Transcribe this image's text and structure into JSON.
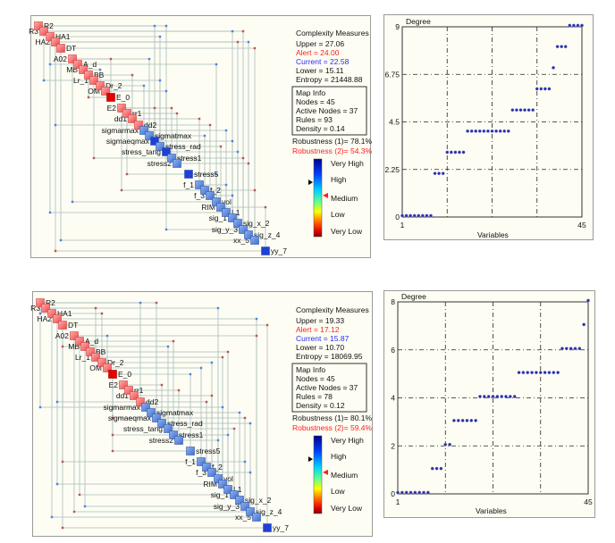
{
  "nodes": [
    {
      "label": "R2",
      "type": "red"
    },
    {
      "label": "R3",
      "type": "red"
    },
    {
      "label": "HA1",
      "type": "red"
    },
    {
      "label": "HA2",
      "type": "red"
    },
    {
      "label": "DT",
      "type": "red"
    },
    {
      "label": "A02",
      "type": "red"
    },
    {
      "label": "A_d",
      "type": "red"
    },
    {
      "label": "MB",
      "type": "red"
    },
    {
      "label": "BB",
      "type": "red"
    },
    {
      "label": "Lr_1",
      "type": "red"
    },
    {
      "label": "Dr_2",
      "type": "red"
    },
    {
      "label": "OM",
      "type": "red"
    },
    {
      "label": "E_0",
      "type": "bright-red"
    },
    {
      "label": "E2",
      "type": "red"
    },
    {
      "label": "rr1",
      "type": "red"
    },
    {
      "label": "dd1",
      "type": "red"
    },
    {
      "label": "dd2",
      "type": "red"
    },
    {
      "label": "sigmarmax",
      "type": "blue"
    },
    {
      "label": "sigmatmax",
      "type": "blue"
    },
    {
      "label": "sigmaeqmax",
      "type": "blue"
    },
    {
      "label": "stress_rad",
      "type": "blue"
    },
    {
      "label": "stress_tang",
      "type": "blue"
    },
    {
      "label": "stress1",
      "type": "blue"
    },
    {
      "label": "stress2",
      "type": "blue"
    },
    {
      "label": "stress5",
      "type": "blue"
    },
    {
      "label": "f_1",
      "type": "blue"
    },
    {
      "label": "f_2",
      "type": "blue"
    },
    {
      "label": "f_3",
      "type": "blue"
    },
    {
      "label": "vol",
      "type": "blue"
    },
    {
      "label": "RIM",
      "type": "blue"
    },
    {
      "label": "L1",
      "type": "blue"
    },
    {
      "label": "sig_1",
      "type": "blue"
    },
    {
      "label": "sig_x_2",
      "type": "blue"
    },
    {
      "label": "sig_y_3",
      "type": "blue"
    },
    {
      "label": "sig_z_4",
      "type": "blue"
    },
    {
      "label": "xx_5",
      "type": "blue"
    },
    {
      "label": "yy_7",
      "type": "blue"
    }
  ],
  "colors": {
    "red": "#f46a6a",
    "bright-red": "#e60000",
    "blue": "#5a88dc",
    "dark-blue": "#1f3fd6",
    "alert": "#ff2020",
    "current": "#2a2aff",
    "point": "#2b2b9a"
  },
  "legend": {
    "very_high": "Very High",
    "high": "High",
    "medium": "Medium",
    "low": "Low",
    "very_low": "Very Low"
  },
  "panels": [
    {
      "highlight_nodes": [
        19,
        21,
        24,
        36
      ],
      "connections": [
        [
          0,
          19,
          "b"
        ],
        [
          0,
          21,
          "b"
        ],
        [
          1,
          31,
          "b"
        ],
        [
          1,
          33,
          "r"
        ],
        [
          2,
          20,
          "b"
        ],
        [
          3,
          32,
          "r"
        ],
        [
          3,
          34,
          "b"
        ],
        [
          4,
          35,
          "r"
        ],
        [
          5,
          12,
          "r"
        ],
        [
          5,
          18,
          "b"
        ],
        [
          6,
          28,
          "b"
        ],
        [
          7,
          10,
          "b"
        ],
        [
          8,
          15,
          "r"
        ],
        [
          9,
          20,
          "b"
        ],
        [
          10,
          17,
          "b"
        ],
        [
          11,
          21,
          "b"
        ],
        [
          13,
          22,
          "r"
        ],
        [
          13,
          19,
          "r"
        ],
        [
          14,
          23,
          "r"
        ],
        [
          15,
          25,
          "r"
        ],
        [
          16,
          27,
          "r"
        ],
        [
          17,
          30,
          "b"
        ],
        [
          18,
          26,
          "b"
        ],
        [
          19,
          31,
          "b"
        ],
        [
          20,
          29,
          "r"
        ],
        [
          21,
          32,
          "b"
        ],
        [
          22,
          33,
          "r"
        ],
        [
          23,
          34,
          "r"
        ],
        [
          24,
          28,
          "b"
        ],
        [
          25,
          30,
          "b"
        ],
        [
          26,
          35,
          "r"
        ],
        [
          27,
          31,
          "b"
        ],
        [
          29,
          36,
          "r"
        ],
        [
          6,
          2,
          "b"
        ],
        [
          9,
          1,
          "b"
        ],
        [
          12,
          8,
          "r"
        ],
        [
          16,
          3,
          "b"
        ],
        [
          22,
          9,
          "r"
        ],
        [
          24,
          14,
          "r"
        ],
        [
          26,
          13,
          "r"
        ],
        [
          28,
          5,
          "b"
        ],
        [
          30,
          2,
          "b"
        ],
        [
          33,
          21,
          "b"
        ],
        [
          35,
          4,
          "b"
        ],
        [
          36,
          3,
          "r"
        ]
      ],
      "complexity": {
        "title": "Complexity Measures",
        "upper": "Upper = 27.06",
        "alert": "Alert = 24.00",
        "current": "Current = 22.58",
        "lower": "Lower = 15.11",
        "entropy": "Entropy = 21448.88"
      },
      "map_info": {
        "title": "Map Info",
        "nodes": "Nodes = 45",
        "active_nodes": "Active Nodes = 37",
        "rules": "Rules = 93",
        "density": "Density = 0.14"
      },
      "robustness1": "Robustness (1)= 78.1%",
      "robustness2": "Robustness (2)= 54.3%",
      "scale_current_level": 0.7,
      "scale_alert_level": 0.53
    },
    {
      "highlight_nodes": [
        36
      ],
      "connections": [
        [
          0,
          16,
          "b"
        ],
        [
          0,
          19,
          "r"
        ],
        [
          1,
          9,
          "r"
        ],
        [
          1,
          28,
          "b"
        ],
        [
          2,
          10,
          "r"
        ],
        [
          3,
          35,
          "b"
        ],
        [
          4,
          36,
          "r"
        ],
        [
          5,
          11,
          "b"
        ],
        [
          5,
          35,
          "r"
        ],
        [
          6,
          22,
          "r"
        ],
        [
          7,
          21,
          "b"
        ],
        [
          8,
          30,
          "r"
        ],
        [
          9,
          29,
          "r"
        ],
        [
          10,
          27,
          "b"
        ],
        [
          11,
          25,
          "b"
        ],
        [
          12,
          24,
          "b"
        ],
        [
          13,
          20,
          "r"
        ],
        [
          14,
          23,
          "r"
        ],
        [
          15,
          27,
          "r"
        ],
        [
          16,
          26,
          "r"
        ],
        [
          17,
          29,
          "b"
        ],
        [
          18,
          32,
          "b"
        ],
        [
          19,
          33,
          "r"
        ],
        [
          20,
          34,
          "b"
        ],
        [
          21,
          31,
          "r"
        ],
        [
          22,
          30,
          "b"
        ],
        [
          23,
          28,
          "b"
        ],
        [
          25,
          33,
          "b"
        ],
        [
          27,
          34,
          "b"
        ],
        [
          2,
          0,
          "b"
        ],
        [
          7,
          4,
          "r"
        ],
        [
          16,
          3,
          "b"
        ],
        [
          17,
          0,
          "b"
        ],
        [
          19,
          12,
          "r"
        ],
        [
          22,
          12,
          "r"
        ],
        [
          24,
          12,
          "r"
        ],
        [
          25,
          4,
          "r"
        ],
        [
          29,
          3,
          "b"
        ],
        [
          31,
          6,
          "r"
        ],
        [
          33,
          7,
          "b"
        ],
        [
          34,
          5,
          "r"
        ],
        [
          35,
          2,
          "b"
        ],
        [
          36,
          4,
          "r"
        ]
      ],
      "complexity": {
        "title": "Complexity Measures",
        "upper": "Upper = 19.33",
        "alert": "Alert = 17.12",
        "current": "Current = 15.87",
        "lower": "Lower = 10.70",
        "entropy": "Entropy = 18069.95"
      },
      "map_info": {
        "title": "Map Info",
        "nodes": "Nodes = 45",
        "active_nodes": "Active Nodes = 37",
        "rules": "Rules = 78",
        "density": "Density = 0.12"
      },
      "robustness1": "Robustness (1)= 80.1%",
      "robustness2": "Robustness (2)= 59.4%",
      "scale_current_level": 0.7,
      "scale_alert_level": 0.53
    }
  ],
  "chart_data": [
    {
      "type": "scatter",
      "title": "",
      "ylabel": "Degree",
      "xlabel": "Variables",
      "xlim": [
        1,
        45
      ],
      "ylim": [
        0,
        9
      ],
      "x_ticks": [
        "1",
        "45"
      ],
      "y_ticks": [
        "0",
        "2.25",
        "4.5",
        "6.75",
        "9"
      ],
      "grid": true,
      "x": [
        1,
        2,
        3,
        4,
        5,
        6,
        7,
        8,
        9,
        10,
        11,
        12,
        13,
        14,
        15,
        16,
        17,
        18,
        19,
        20,
        21,
        22,
        23,
        24,
        25,
        26,
        27,
        28,
        29,
        30,
        31,
        32,
        33,
        34,
        35,
        36,
        37,
        38,
        39,
        40,
        41,
        42,
        43,
        44,
        45
      ],
      "y": [
        0,
        0,
        0,
        0,
        0,
        0,
        0,
        0,
        2,
        2,
        2,
        3,
        3,
        3,
        3,
        3,
        4,
        4,
        4,
        4,
        4,
        4,
        4,
        4,
        4,
        4,
        4,
        5,
        5,
        5,
        5,
        5,
        5,
        6,
        6,
        6,
        6,
        7,
        8,
        8,
        8,
        9,
        9,
        9,
        9
      ]
    },
    {
      "type": "scatter",
      "title": "",
      "ylabel": "Degree",
      "xlabel": "Variables",
      "xlim": [
        1,
        45
      ],
      "ylim": [
        0,
        8
      ],
      "x_ticks": [
        "1",
        "45"
      ],
      "y_ticks": [
        "0",
        "2",
        "4",
        "6",
        "8"
      ],
      "grid": true,
      "x": [
        1,
        2,
        3,
        4,
        5,
        6,
        7,
        8,
        9,
        10,
        11,
        12,
        13,
        14,
        15,
        16,
        17,
        18,
        19,
        20,
        21,
        22,
        23,
        24,
        25,
        26,
        27,
        28,
        29,
        30,
        31,
        32,
        33,
        34,
        35,
        36,
        37,
        38,
        39,
        40,
        41,
        42,
        43,
        44,
        45
      ],
      "y": [
        0,
        0,
        0,
        0,
        0,
        0,
        0,
        0,
        1,
        1,
        1,
        2,
        2,
        3,
        3,
        3,
        3,
        3,
        3,
        4,
        4,
        4,
        4,
        4,
        4,
        4,
        4,
        4,
        5,
        5,
        5,
        5,
        5,
        5,
        5,
        5,
        5,
        5,
        6,
        6,
        6,
        6,
        6,
        7,
        8
      ]
    }
  ]
}
